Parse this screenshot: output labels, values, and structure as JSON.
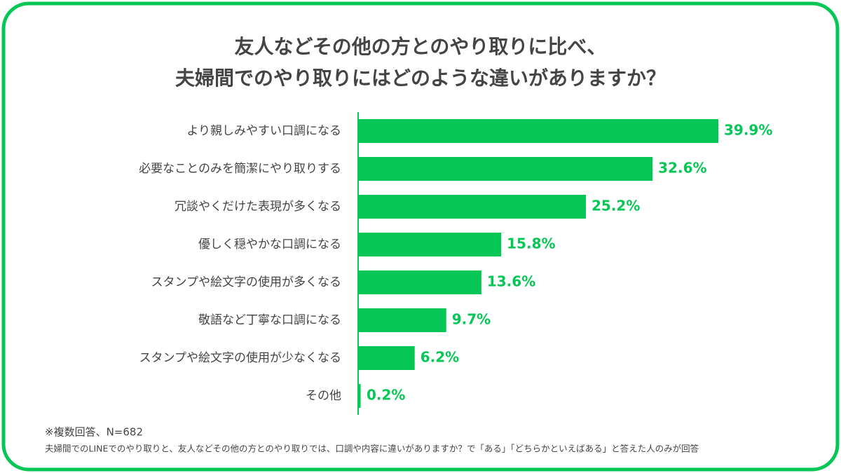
{
  "chart_data": {
    "type": "bar",
    "orientation": "horizontal",
    "title": [
      "友人などその他の方とのやり取りに比べ、",
      "夫婦間でのやり取りにはどのような違いがありますか？"
    ],
    "categories": [
      "より親しみやすい口調になる",
      "必要なことのみを簡潔にやり取りする",
      "冗談やくだけた表現が多くなる",
      "優しく穏やかな口調になる",
      "スタンプや絵文字の使用が多くなる",
      "敬語など丁寧な口調になる",
      "スタンプや絵文字の使用が少なくなる",
      "その他"
    ],
    "values": [
      39.9,
      32.6,
      25.2,
      15.8,
      13.6,
      9.7,
      6.2,
      0.2
    ],
    "value_labels": [
      "39.9%",
      "32.6%",
      "25.2%",
      "15.8%",
      "13.6%",
      "9.7%",
      "6.2%",
      "0.2%"
    ],
    "color": "#06c755",
    "notes": [
      "※複数回答、N=682",
      "夫婦間でのLINEでのやり取りと、友人などその他の方とのやり取りでは、口調や内容に違いがありますか？で「ある」「どちらかといえばある」と答えた人のみが回答"
    ]
  }
}
